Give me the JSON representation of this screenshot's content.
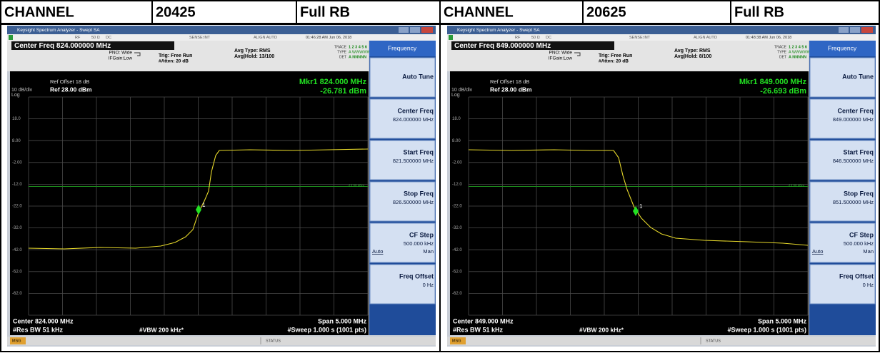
{
  "header": [
    "CHANNEL",
    "20425",
    "Full RB",
    "CHANNEL",
    "20625",
    "Full RB"
  ],
  "panels": [
    {
      "window_title": "Keysight Spectrum Analyzer - Swept SA",
      "rf": "RF",
      "impedance": "50 Ω",
      "coupling": "DC",
      "sense": "SENSE:INT",
      "align": "ALIGN AUTO",
      "timestamp": "01:46:28 AM Jun 06, 2018",
      "center_freq": "Center Freq 824.000000 MHz",
      "pno": "PNO: Wide",
      "ifgain": "IFGain:Low",
      "trig": "Trig: Free Run",
      "atten": "#Atten: 20 dB",
      "avg_type": "Avg Type: RMS",
      "avg_hold": "Avg|Hold: 13/100",
      "trace_label": "TRACE",
      "trace_nums": "1 2 3 4 5 6",
      "type_label": "TYPE",
      "type_val": "A WWWWW",
      "det_label": "DET",
      "det_val": "A NNNNN",
      "ref_offset": "Ref Offset 18 dB",
      "scale": "10 dB/div",
      "ref_level": "Ref 28.00 dBm",
      "log": "Log",
      "marker_freq": "Mkr1 824.000 MHz",
      "marker_level": "-26.781 dBm",
      "y_labels": [
        "18.0",
        "8.00",
        "-2.00",
        "-12.0",
        "-22.0",
        "-32.0",
        "-42.0",
        "-52.0",
        "-62.0"
      ],
      "limit_label": "-13.00 dBm",
      "marker_id": "1",
      "footer": {
        "center": "Center 824.000 MHz",
        "rbw": "#Res BW 51 kHz",
        "vbw": "#VBW 200 kHz*",
        "span": "Span 5.000 MHz",
        "sweep": "#Sweep  1.000 s (1001 pts)"
      },
      "msg": "MSG",
      "status": "STATUS",
      "menu": {
        "title": "Frequency",
        "items": [
          {
            "label": "Auto Tune"
          },
          {
            "label": "Center Freq",
            "value": "824.000000 MHz"
          },
          {
            "label": "Start Freq",
            "value": "821.500000 MHz"
          },
          {
            "label": "Stop Freq",
            "value": "826.500000 MHz"
          },
          {
            "label": "CF Step",
            "value": "500.000 kHz",
            "left": "Auto",
            "right": "Man"
          },
          {
            "label": "Freq Offset",
            "value": "0 Hz"
          }
        ]
      }
    },
    {
      "window_title": "Keysight Spectrum Analyzer - Swept SA",
      "rf": "RF",
      "impedance": "50 Ω",
      "coupling": "DC",
      "sense": "SENSE:INT",
      "align": "ALIGN AUTO",
      "timestamp": "01:48:38 AM Jun 06, 2018",
      "center_freq": "Center Freq 849.000000 MHz",
      "pno": "PNO: Wide",
      "ifgain": "IFGain:Low",
      "trig": "Trig: Free Run",
      "atten": "#Atten: 20 dB",
      "avg_type": "Avg Type: RMS",
      "avg_hold": "Avg|Hold: 8/100",
      "trace_label": "TRACE",
      "trace_nums": "1 2 3 4 5 6",
      "type_label": "TYPE",
      "type_val": "A WWWWW",
      "det_label": "DET",
      "det_val": "A NNNNN",
      "ref_offset": "Ref Offset 18 dB",
      "scale": "10 dB/div",
      "ref_level": "Ref 28.00 dBm",
      "log": "Log",
      "marker_freq": "Mkr1 849.000 MHz",
      "marker_level": "-26.693 dBm",
      "y_labels": [
        "18.0",
        "8.00",
        "-2.00",
        "-12.0",
        "-22.0",
        "-32.0",
        "-42.0",
        "-52.0",
        "-62.0"
      ],
      "limit_label": "-13.00 dBm",
      "marker_id": "1",
      "footer": {
        "center": "Center 849.000 MHz",
        "rbw": "#Res BW 51 kHz",
        "vbw": "#VBW 200 kHz*",
        "span": "Span 5.000 MHz",
        "sweep": "#Sweep  1.000 s (1001 pts)"
      },
      "msg": "MSG",
      "status": "STATUS",
      "menu": {
        "title": "Frequency",
        "items": [
          {
            "label": "Auto Tune"
          },
          {
            "label": "Center Freq",
            "value": "849.000000 MHz"
          },
          {
            "label": "Start Freq",
            "value": "846.500000 MHz"
          },
          {
            "label": "Stop Freq",
            "value": "851.500000 MHz"
          },
          {
            "label": "CF Step",
            "value": "500.000 kHz",
            "left": "Auto",
            "right": "Man"
          },
          {
            "label": "Freq Offset",
            "value": "0 Hz"
          }
        ]
      }
    }
  ]
}
